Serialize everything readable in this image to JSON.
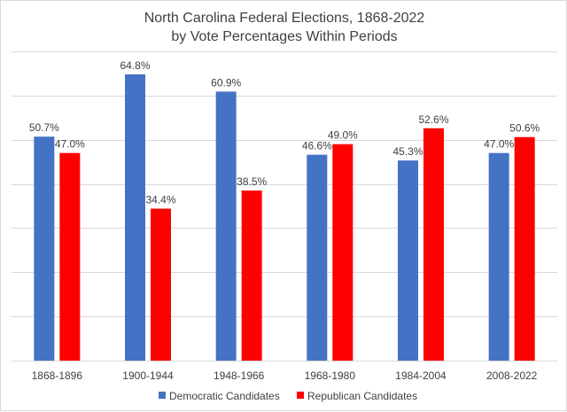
{
  "chart_data": {
    "type": "bar",
    "title": "North Carolina Federal Elections, 1868-2022",
    "subtitle": "by Vote Percentages Within Periods",
    "categories": [
      "1868-1896",
      "1900-1944",
      "1948-1966",
      "1968-1980",
      "1984-2004",
      "2008-2022"
    ],
    "series": [
      {
        "name": "Democratic Candidates",
        "color": "#4472C4",
        "values": [
          50.7,
          64.8,
          60.9,
          46.6,
          45.3,
          47.0
        ],
        "labels": [
          "50.7%",
          "64.8%",
          "60.9%",
          "46.6%",
          "45.3%",
          "47.0%"
        ]
      },
      {
        "name": "Republican Candidates",
        "color": "#FF0000",
        "values": [
          47.0,
          34.4,
          38.5,
          49.0,
          52.6,
          50.6
        ],
        "labels": [
          "47.0%",
          "34.4%",
          "38.5%",
          "49.0%",
          "52.6%",
          "50.6%"
        ]
      }
    ],
    "ylim": [
      0,
      70
    ],
    "grid": true,
    "legend": "bottom",
    "xlabel": "",
    "ylabel": ""
  }
}
